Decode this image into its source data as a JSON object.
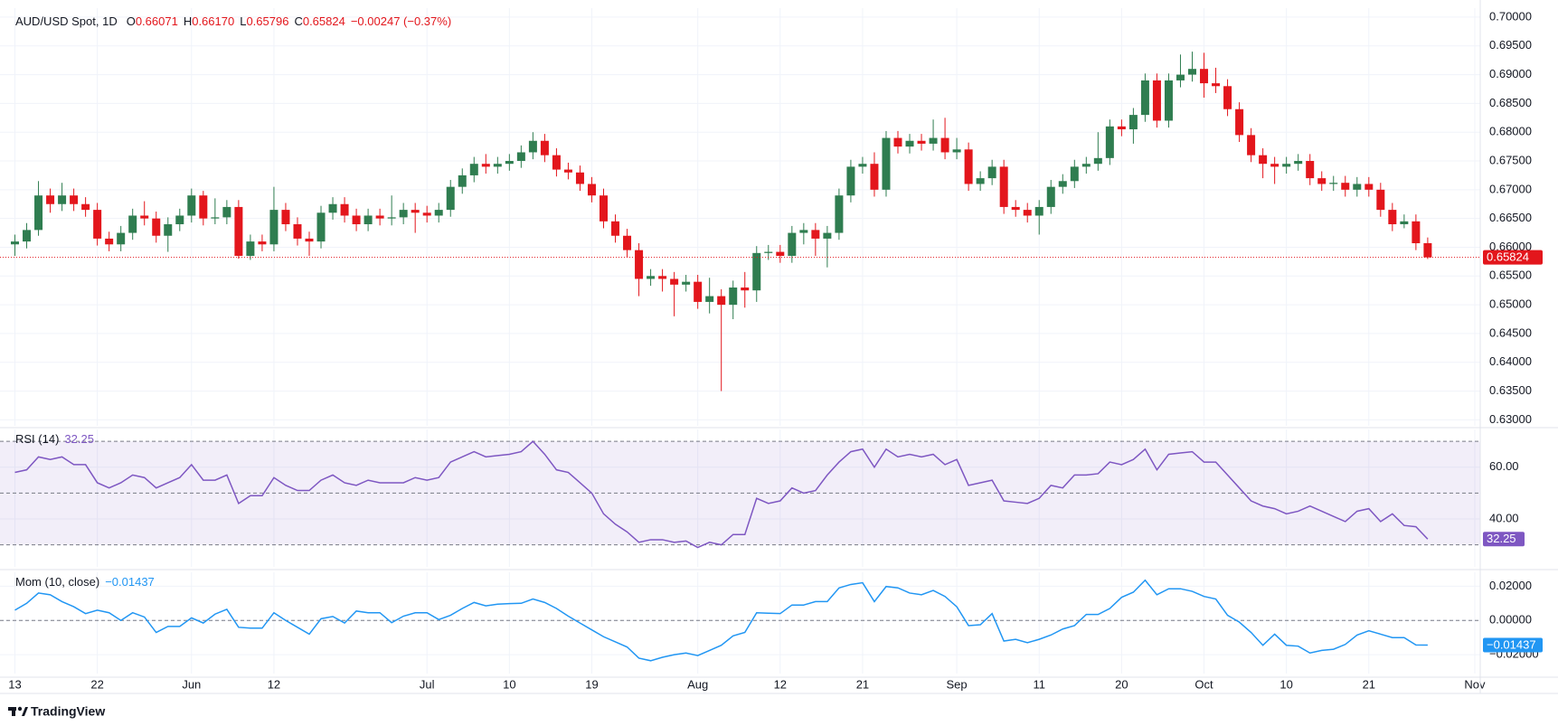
{
  "chart_data": [
    {
      "type": "candlestick",
      "title": "AUD/USD Spot, 1D",
      "legend_items": [
        {
          "key": "O",
          "text": "0.66071"
        },
        {
          "key": "H",
          "text": "0.66170"
        },
        {
          "key": "L",
          "text": "0.65796"
        },
        {
          "key": "C",
          "text": "0.65824"
        }
      ],
      "change_label": "−0.00247 (−0.37%)",
      "last_label": "0.65824",
      "up_color": "#2f7d50",
      "down_color": "#e3161c",
      "categories": [
        "13",
        null,
        null,
        null,
        null,
        null,
        null,
        "22",
        null,
        null,
        null,
        null,
        null,
        null,
        null,
        "Jun",
        null,
        null,
        null,
        null,
        null,
        null,
        "12",
        null,
        null,
        null,
        null,
        null,
        null,
        null,
        null,
        null,
        null,
        null,
        null,
        "Jul",
        null,
        null,
        null,
        null,
        null,
        null,
        "10",
        null,
        null,
        null,
        null,
        null,
        null,
        "19",
        null,
        null,
        null,
        null,
        null,
        null,
        null,
        null,
        "Aug",
        null,
        null,
        null,
        null,
        null,
        null,
        "12",
        null,
        null,
        null,
        null,
        null,
        null,
        "21",
        null,
        null,
        null,
        null,
        null,
        null,
        null,
        "Sep",
        null,
        null,
        null,
        null,
        null,
        null,
        "11",
        null,
        null,
        null,
        null,
        null,
        null,
        "20",
        null,
        null,
        null,
        null,
        null,
        null,
        "Oct",
        null,
        null,
        null,
        null,
        null,
        null,
        "10",
        null,
        null,
        null,
        null,
        null,
        null,
        "21",
        null,
        null,
        null,
        null,
        null,
        null,
        null,
        null,
        "Nov"
      ],
      "open": [
        0.6605,
        0.661,
        0.663,
        0.669,
        0.6675,
        0.669,
        0.6675,
        0.6665,
        0.6615,
        0.6605,
        0.6625,
        0.6655,
        0.665,
        0.662,
        0.664,
        0.6655,
        0.669,
        0.665,
        0.6652,
        0.667,
        0.6585,
        0.661,
        0.6605,
        0.6665,
        0.664,
        0.6615,
        0.661,
        0.666,
        0.6675,
        0.6655,
        0.664,
        0.6655,
        0.665,
        0.6652,
        0.6665,
        0.666,
        0.6655,
        0.6665,
        0.6705,
        0.6725,
        0.6745,
        0.674,
        0.6745,
        0.675,
        0.6765,
        0.6785,
        0.676,
        0.6735,
        0.673,
        0.671,
        0.669,
        0.6645,
        0.662,
        0.6595,
        0.6545,
        0.655,
        0.6545,
        0.6535,
        0.654,
        0.6505,
        0.6515,
        0.65,
        0.653,
        0.6525,
        0.659,
        0.6592,
        0.6585,
        0.6625,
        0.663,
        0.6615,
        0.6625,
        0.669,
        0.674,
        0.6745,
        0.67,
        0.679,
        0.6775,
        0.6785,
        0.678,
        0.679,
        0.6765,
        0.677,
        0.671,
        0.672,
        0.674,
        0.667,
        0.6665,
        0.6655,
        0.667,
        0.6705,
        0.6715,
        0.674,
        0.6745,
        0.6755,
        0.681,
        0.6805,
        0.683,
        0.689,
        0.682,
        0.689,
        0.69,
        0.691,
        0.6885,
        0.688,
        0.684,
        0.6795,
        0.676,
        0.6745,
        0.674,
        0.6745,
        0.675,
        0.672,
        0.671,
        0.6712,
        0.67,
        0.671,
        0.67,
        0.6665,
        0.664,
        0.6645,
        0.66071,
        null,
        null,
        null,
        null
      ],
      "high": [
        0.6622,
        0.6642,
        0.6715,
        0.6702,
        0.6712,
        0.6702,
        0.6687,
        0.6677,
        0.6627,
        0.6637,
        0.6667,
        0.668,
        0.6662,
        0.6652,
        0.6667,
        0.6702,
        0.6698,
        0.6685,
        0.6682,
        0.6682,
        0.6622,
        0.6622,
        0.6705,
        0.6677,
        0.6652,
        0.6627,
        0.6672,
        0.6687,
        0.6687,
        0.6667,
        0.6667,
        0.6667,
        0.669,
        0.6677,
        0.6677,
        0.6672,
        0.6677,
        0.6717,
        0.6737,
        0.6757,
        0.6762,
        0.6757,
        0.6762,
        0.6777,
        0.68,
        0.6797,
        0.6772,
        0.6747,
        0.6742,
        0.6722,
        0.6702,
        0.6657,
        0.6632,
        0.6607,
        0.6562,
        0.6562,
        0.6557,
        0.6552,
        0.6552,
        0.6547,
        0.6527,
        0.6542,
        0.6557,
        0.6602,
        0.6604,
        0.6604,
        0.6637,
        0.6642,
        0.6642,
        0.6637,
        0.6702,
        0.6752,
        0.6757,
        0.6765,
        0.6802,
        0.6802,
        0.6797,
        0.6797,
        0.6822,
        0.6825,
        0.679,
        0.6782,
        0.6732,
        0.6752,
        0.6752,
        0.6682,
        0.6677,
        0.6682,
        0.6717,
        0.6727,
        0.6752,
        0.6757,
        0.68,
        0.6822,
        0.6822,
        0.6842,
        0.6902,
        0.6902,
        0.6902,
        0.6935,
        0.694,
        0.6938,
        0.6912,
        0.6892,
        0.6852,
        0.6807,
        0.6772,
        0.6757,
        0.6757,
        0.6762,
        0.6762,
        0.6732,
        0.6724,
        0.6724,
        0.6722,
        0.6722,
        0.6712,
        0.6677,
        0.6657,
        0.6657,
        0.6617,
        null,
        null,
        null,
        null
      ],
      "low": [
        0.6585,
        0.6598,
        0.662,
        0.666,
        0.6663,
        0.6663,
        0.6653,
        0.6603,
        0.6593,
        0.6593,
        0.6613,
        0.6638,
        0.6608,
        0.6592,
        0.6628,
        0.6643,
        0.6638,
        0.664,
        0.664,
        0.658,
        0.6578,
        0.6593,
        0.6593,
        0.6628,
        0.6603,
        0.6585,
        0.6598,
        0.6648,
        0.6643,
        0.6628,
        0.6628,
        0.6638,
        0.6638,
        0.664,
        0.6625,
        0.6643,
        0.6643,
        0.6653,
        0.6693,
        0.6713,
        0.6728,
        0.6728,
        0.6733,
        0.6738,
        0.6753,
        0.6748,
        0.6723,
        0.6718,
        0.6698,
        0.6678,
        0.6633,
        0.6608,
        0.6583,
        0.6515,
        0.6533,
        0.6523,
        0.648,
        0.6523,
        0.6493,
        0.6485,
        0.635,
        0.6475,
        0.6495,
        0.6505,
        0.6578,
        0.6573,
        0.6573,
        0.6605,
        0.6585,
        0.6565,
        0.6613,
        0.6678,
        0.6728,
        0.6688,
        0.6688,
        0.6763,
        0.6763,
        0.6768,
        0.6768,
        0.6753,
        0.6753,
        0.6698,
        0.6698,
        0.6708,
        0.6658,
        0.6653,
        0.6643,
        0.6622,
        0.6658,
        0.6693,
        0.6703,
        0.6728,
        0.6733,
        0.6743,
        0.6793,
        0.678,
        0.6818,
        0.6808,
        0.6808,
        0.6878,
        0.6888,
        0.686,
        0.6868,
        0.6828,
        0.6783,
        0.6748,
        0.672,
        0.671,
        0.6728,
        0.6733,
        0.6708,
        0.6698,
        0.6698,
        0.6688,
        0.6688,
        0.6688,
        0.6653,
        0.6628,
        0.6633,
        0.6595,
        0.65796,
        null,
        null,
        null,
        null
      ],
      "close": [
        0.661,
        0.663,
        0.669,
        0.6675,
        0.669,
        0.6675,
        0.6665,
        0.6615,
        0.6605,
        0.6625,
        0.6655,
        0.665,
        0.662,
        0.664,
        0.6655,
        0.669,
        0.665,
        0.6652,
        0.667,
        0.6585,
        0.661,
        0.6605,
        0.6665,
        0.664,
        0.6615,
        0.661,
        0.666,
        0.6675,
        0.6655,
        0.664,
        0.6655,
        0.665,
        0.6652,
        0.6665,
        0.666,
        0.6655,
        0.6665,
        0.6705,
        0.6725,
        0.6745,
        0.674,
        0.6745,
        0.675,
        0.6765,
        0.6785,
        0.676,
        0.6735,
        0.673,
        0.671,
        0.669,
        0.6645,
        0.662,
        0.6595,
        0.6545,
        0.655,
        0.6545,
        0.6535,
        0.654,
        0.6505,
        0.6515,
        0.65,
        0.653,
        0.6525,
        0.659,
        0.6592,
        0.6585,
        0.6625,
        0.663,
        0.6615,
        0.6625,
        0.669,
        0.674,
        0.6745,
        0.67,
        0.679,
        0.6775,
        0.6785,
        0.678,
        0.679,
        0.6765,
        0.677,
        0.671,
        0.672,
        0.674,
        0.667,
        0.6665,
        0.6655,
        0.667,
        0.6705,
        0.6715,
        0.674,
        0.6745,
        0.6755,
        0.681,
        0.6805,
        0.683,
        0.689,
        0.682,
        0.689,
        0.69,
        0.691,
        0.6885,
        0.688,
        0.684,
        0.6795,
        0.676,
        0.6745,
        0.674,
        0.6745,
        0.675,
        0.672,
        0.671,
        0.6712,
        0.67,
        0.671,
        0.67,
        0.6665,
        0.664,
        0.6645,
        0.6607,
        0.65824,
        null,
        null,
        null,
        null
      ],
      "ylim": [
        0.62896,
        0.70156
      ],
      "yticks": [
        {
          "value": 0.63,
          "label": "0.63000"
        },
        {
          "value": 0.635,
          "label": "0.63500"
        },
        {
          "value": 0.64,
          "label": "0.64000"
        },
        {
          "value": 0.645,
          "label": "0.64500"
        },
        {
          "value": 0.65,
          "label": "0.65000"
        },
        {
          "value": 0.655,
          "label": "0.65500"
        },
        {
          "value": 0.66,
          "label": "0.66000"
        },
        {
          "value": 0.665,
          "label": "0.66500"
        },
        {
          "value": 0.67,
          "label": "0.67000"
        },
        {
          "value": 0.675,
          "label": "0.67500"
        },
        {
          "value": 0.68,
          "label": "0.68000"
        },
        {
          "value": 0.685,
          "label": "0.68500"
        },
        {
          "value": 0.69,
          "label": "0.69000"
        },
        {
          "value": 0.695,
          "label": "0.69500"
        },
        {
          "value": 0.7,
          "label": "0.70000"
        }
      ],
      "grid": true
    },
    {
      "type": "line",
      "title": "RSI (14)",
      "color": "#7e57c2",
      "band_color": "rgba(126,87,194,0.1)",
      "values": [
        58,
        59,
        64,
        63,
        64,
        61,
        61,
        54,
        52,
        54,
        57,
        56,
        52,
        54,
        56,
        61,
        55,
        55,
        57,
        46,
        49,
        49,
        56,
        53,
        51,
        51,
        55,
        57,
        54,
        53,
        55,
        54,
        54,
        54,
        56,
        55,
        56,
        62,
        64,
        66,
        64,
        64.5,
        65,
        66,
        70,
        65,
        59,
        58,
        54,
        50,
        42,
        38,
        35,
        31,
        32,
        32,
        31,
        31.5,
        29,
        31,
        30,
        34,
        34,
        48,
        46,
        47,
        52,
        50,
        51,
        57,
        62,
        66,
        67,
        60,
        67,
        64,
        65,
        64,
        65,
        61,
        63,
        53,
        54,
        55,
        47,
        46.5,
        46,
        48,
        53,
        52,
        57,
        57,
        57.5,
        62,
        61,
        63,
        67,
        59,
        65,
        65.5,
        66,
        62,
        62,
        57,
        52,
        47,
        45,
        44,
        42,
        43,
        45,
        43,
        41,
        39,
        43,
        44,
        39,
        42,
        37.5,
        37,
        32.25,
        null,
        null,
        null,
        null
      ],
      "ylim": [
        21.5,
        74.6
      ],
      "yticks": [
        {
          "value": 40,
          "label": "40.00"
        },
        {
          "value": 60,
          "label": "60.00"
        }
      ],
      "levels": [
        30,
        50,
        70
      ],
      "grid": true
    },
    {
      "type": "line",
      "title": "Mom (10, close)",
      "color": "#2196f3",
      "last_label": "−0.01437",
      "values": [
        0.006,
        0.01,
        0.016,
        0.015,
        0.011,
        0.008,
        0.004,
        0.006,
        0.0045,
        0,
        0.0045,
        0.002,
        -0.007,
        -0.0035,
        -0.0035,
        0.0015,
        -0.0015,
        0.0037,
        0.0065,
        -0.004,
        -0.0045,
        -0.0045,
        0.0045,
        0,
        -0.004,
        -0.008,
        0.001,
        0.0023,
        -0.0015,
        0.0055,
        0.0045,
        0.0045,
        -0.0013,
        0.0025,
        0.0045,
        0.0045,
        0.0005,
        0.003,
        0.007,
        0.0105,
        0.0085,
        0.0095,
        0.0098,
        0.01,
        0.0125,
        0.0105,
        0.007,
        0.0025,
        -0.0015,
        -0.0055,
        -0.0095,
        -0.0125,
        -0.0155,
        -0.022,
        -0.0235,
        -0.0215,
        -0.02,
        -0.019,
        -0.0205,
        -0.0175,
        -0.0145,
        -0.009,
        -0.007,
        0.0045,
        0.0042,
        0.004,
        0.009,
        0.009,
        0.011,
        0.011,
        0.019,
        0.021,
        0.022,
        0.011,
        0.0198,
        0.019,
        0.016,
        0.015,
        0.0175,
        0.014,
        0.008,
        -0.003,
        -0.0025,
        0.004,
        -0.012,
        -0.011,
        -0.013,
        -0.011,
        -0.0085,
        -0.005,
        -0.003,
        0.0035,
        0.0035,
        0.007,
        0.0135,
        0.0165,
        0.0235,
        0.015,
        0.0185,
        0.0185,
        0.017,
        0.014,
        0.0125,
        0.003,
        -0.001,
        -0.007,
        -0.0145,
        -0.008,
        -0.0145,
        -0.015,
        -0.019,
        -0.0175,
        -0.0168,
        -0.014,
        -0.0085,
        -0.006,
        -0.008,
        -0.01,
        -0.01,
        -0.0143,
        -0.01437,
        null,
        null,
        null,
        null
      ],
      "ylim": [
        -0.031,
        0.0281
      ],
      "yticks": [
        {
          "value": -0.02,
          "label": "−0.02000"
        },
        {
          "value": 0,
          "label": "0.00000"
        },
        {
          "value": 0.02,
          "label": "0.02000"
        }
      ],
      "levels": [
        0
      ],
      "grid": true
    }
  ],
  "footer": {
    "brand": "TradingView"
  }
}
